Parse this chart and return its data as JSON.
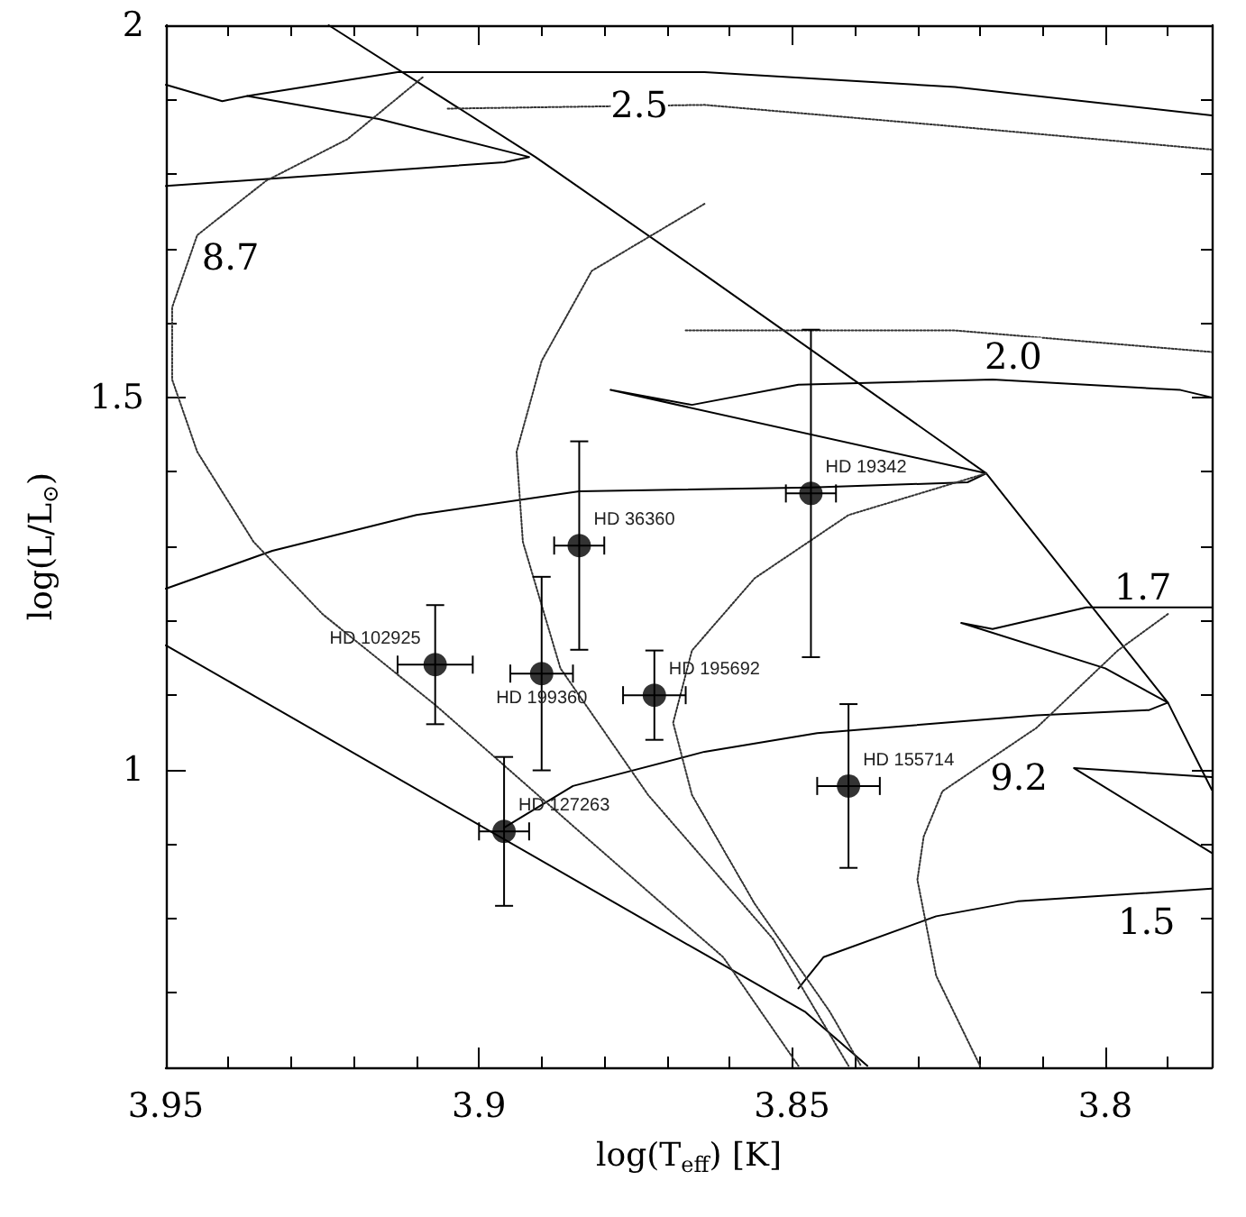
{
  "chart_data": {
    "type": "line",
    "xlabel": "log(T$_{eff}$) [K]",
    "ylabel": "log(L/L$_{⊙}$)",
    "xlim": [
      3.95,
      3.783
    ],
    "ylim": [
      0.6,
      2
    ],
    "xticks": [
      3.95,
      {
        "value": 3.94,
        "label": null
      },
      {
        "value": 3.93,
        "label": null
      },
      {
        "value": 3.92,
        "label": null
      },
      {
        "value": 3.91,
        "label": null
      },
      3.9,
      {
        "value": 3.89,
        "label": null
      },
      {
        "value": 3.88,
        "label": null
      },
      {
        "value": 3.87,
        "label": null
      },
      {
        "value": 3.86,
        "label": null
      },
      3.85,
      {
        "value": 3.84,
        "label": null
      },
      {
        "value": 3.83,
        "label": null
      },
      {
        "value": 3.82,
        "label": null
      },
      {
        "value": 3.81,
        "label": null
      },
      3.8,
      {
        "value": 3.79,
        "label": null
      }
    ],
    "yticks": [
      {
        "value": 0.6,
        "label": null
      },
      {
        "value": 0.7,
        "label": null
      },
      {
        "value": 0.8,
        "label": null
      },
      {
        "value": 0.9,
        "label": null
      },
      1,
      {
        "value": 1.1,
        "label": null
      },
      {
        "value": 1.2,
        "label": null
      },
      {
        "value": 1.3,
        "label": null
      },
      {
        "value": 1.4,
        "label": null
      },
      1.5,
      {
        "value": 1.6,
        "label": null
      },
      {
        "value": 1.7,
        "label": null
      },
      {
        "value": 1.8,
        "label": null
      },
      {
        "value": 1.9,
        "label": null
      },
      2
    ],
    "grid": false,
    "marker": "none",
    "series": [
      {
        "type": "line",
        "line_style": "solid",
        "color": "#000000",
        "x": [
          3.924,
          3.891,
          3.864,
          3.819,
          3.79,
          3.783
        ],
        "values": [
          2.0,
          1.823,
          1.665,
          1.398,
          1.09,
          0.973
        ]
      },
      {
        "type": "line",
        "line_style": "solid",
        "color": "#000000",
        "x": [
          3.95,
          3.864,
          3.848,
          3.838
        ],
        "values": [
          1.167,
          0.752,
          0.675,
          0.602
        ]
      },
      {
        "type": "line",
        "line_style": "solid",
        "color": "#000000",
        "x": [
          3.849,
          3.845,
          3.827,
          3.814,
          3.783
        ],
        "values": [
          0.706,
          0.748,
          0.803,
          0.823,
          0.84
        ]
      },
      {
        "type": "line",
        "line_style": "solid",
        "color": "#000000",
        "x": [
          3.783,
          3.805,
          3.783
        ],
        "values": [
          0.99,
          1.002,
          0.888
        ]
      },
      {
        "type": "line",
        "line_style": "solid",
        "color": "#000000",
        "x": [
          3.896,
          3.885,
          3.864,
          3.846,
          3.811,
          3.793,
          3.79,
          3.8,
          3.823,
          3.818,
          3.803,
          3.783
        ],
        "values": [
          0.922,
          0.978,
          1.024,
          1.049,
          1.073,
          1.08,
          1.09,
          1.136,
          1.197,
          1.189,
          1.218,
          1.218
        ]
      },
      {
        "type": "line",
        "line_style": "solid",
        "color": "#000000",
        "x": [
          3.95,
          3.933,
          3.91,
          3.884,
          3.847,
          3.822,
          3.819,
          3.879,
          3.866,
          3.849,
          3.818,
          3.788,
          3.783
        ],
        "values": [
          1.243,
          1.294,
          1.342,
          1.374,
          1.379,
          1.386,
          1.398,
          1.51,
          1.49,
          1.517,
          1.524,
          1.51,
          1.5
        ]
      },
      {
        "type": "line",
        "line_style": "solid",
        "color": "#000000",
        "x": [
          3.95,
          3.896,
          3.892,
          3.916,
          3.937,
          3.913,
          3.864,
          3.824,
          3.783
        ],
        "values": [
          1.784,
          1.816,
          1.823,
          1.874,
          1.905,
          1.937,
          1.937,
          1.917,
          1.879
        ]
      },
      {
        "type": "line",
        "line_style": "solid",
        "color": "#000000",
        "x": [
          3.95,
          3.941,
          3.937
        ],
        "values": [
          1.92,
          1.898,
          1.905
        ]
      },
      {
        "type": "line",
        "line_style": "dotted",
        "color": "#333333",
        "x": [
          3.909,
          3.921,
          3.934,
          3.945,
          3.949,
          3.949,
          3.945,
          3.936,
          3.925,
          3.907,
          3.884,
          3.861,
          3.849
        ],
        "values": [
          1.93,
          1.847,
          1.791,
          1.718,
          1.621,
          1.524,
          1.427,
          1.306,
          1.209,
          1.087,
          0.917,
          0.748,
          0.602
        ]
      },
      {
        "type": "line",
        "line_style": "dotted",
        "color": "#333333",
        "x": [
          3.864,
          3.882,
          3.89,
          3.894,
          3.893,
          3.887,
          3.873,
          3.853,
          3.841
        ],
        "values": [
          1.76,
          1.67,
          1.549,
          1.427,
          1.306,
          1.136,
          0.966,
          0.772,
          0.602
        ]
      },
      {
        "type": "line",
        "line_style": "dotted",
        "color": "#333333",
        "x": [
          3.819,
          3.841,
          3.856,
          3.866,
          3.869,
          3.866,
          3.856,
          3.844,
          3.839
        ],
        "values": [
          1.398,
          1.342,
          1.257,
          1.16,
          1.063,
          0.966,
          0.82,
          0.675,
          0.602
        ]
      },
      {
        "type": "line",
        "line_style": "dotted",
        "color": "#333333",
        "x": [
          3.79,
          3.798,
          3.811,
          3.826,
          3.829,
          3.83,
          3.827,
          3.82
        ],
        "values": [
          1.209,
          1.16,
          1.056,
          0.971,
          0.91,
          0.852,
          0.723,
          0.602
        ]
      },
      {
        "type": "line",
        "line_style": "dotted",
        "color": "#333333",
        "x": [
          3.905,
          3.864,
          3.824,
          3.783
        ],
        "values": [
          1.888,
          1.893,
          1.864,
          1.833
        ]
      },
      {
        "type": "line",
        "line_style": "dotted",
        "color": "#333333",
        "x": [
          3.867,
          3.824,
          3.783
        ],
        "values": [
          1.59,
          1.59,
          1.561
        ]
      },
      {
        "type": "scatter",
        "marker": "circle",
        "color": "#000000",
        "x": [
          3.907,
          3.896,
          3.89,
          3.884,
          3.872,
          3.847,
          3.841
        ],
        "values": [
          1.141,
          0.917,
          1.129,
          1.301,
          1.1,
          1.371,
          0.978
        ],
        "errors": [
          0.08,
          0.1,
          0.13,
          0.14,
          0.06,
          0.22,
          0.11
        ],
        "xerrors": [
          0.006,
          0.004,
          0.005,
          0.004,
          0.005,
          0.004,
          0.005
        ]
      }
    ],
    "annotations": [
      {
        "text": "HD 102925",
        "x": 3.907,
        "y": 1.141
      },
      {
        "text": "HD 127263",
        "x": 3.896,
        "y": 0.917
      },
      {
        "text": "HD 199360",
        "x": 3.89,
        "y": 1.129
      },
      {
        "text": "HD 36360",
        "x": 3.884,
        "y": 1.301
      },
      {
        "text": "HD 195692",
        "x": 3.872,
        "y": 1.1
      },
      {
        "text": "HD 19342",
        "x": 3.847,
        "y": 1.371
      },
      {
        "text": "HD 155714",
        "x": 3.841,
        "y": 0.978
      },
      {
        "text": "2.5",
        "x": 3.8744,
        "y": 1.893
      },
      {
        "text": "2.0",
        "x": 3.8147,
        "y": 1.556
      },
      {
        "text": "1.7",
        "x": 3.794,
        "y": 1.245
      },
      {
        "text": "1.5",
        "x": 3.7934,
        "y": 0.796
      },
      {
        "text": "8.7",
        "x": 3.9397,
        "y": 1.689
      },
      {
        "text": "9.2",
        "x": 3.8138,
        "y": 0.99
      }
    ]
  }
}
